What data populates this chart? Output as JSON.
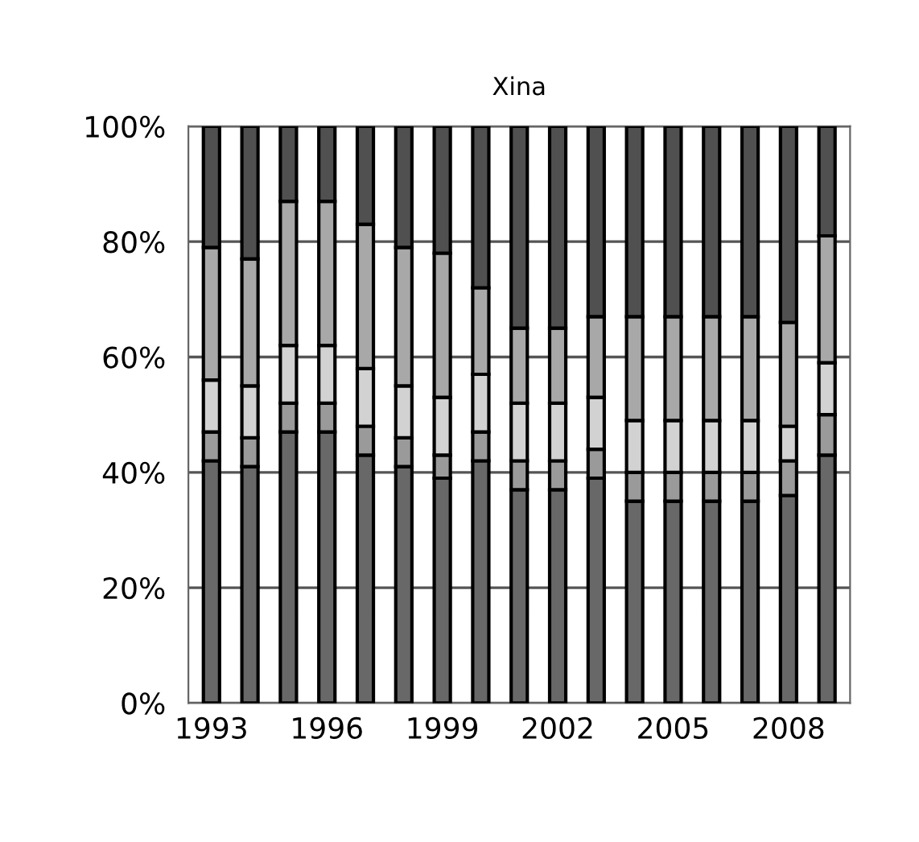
{
  "chart_data": {
    "type": "bar",
    "title": "Xina",
    "stacked": true,
    "categories": [
      "1993",
      null,
      null,
      "1996",
      null,
      null,
      "1999",
      null,
      null,
      "2002",
      null,
      null,
      "2005",
      null,
      null,
      "2008",
      null
    ],
    "series": [
      {
        "color": "#686868",
        "values": [
          42,
          41,
          47,
          47,
          43,
          41,
          39,
          42,
          37,
          37,
          39,
          35,
          35,
          35,
          35,
          36,
          43
        ]
      },
      {
        "color": "#9a9a9a",
        "values": [
          5,
          5,
          5,
          5,
          5,
          5,
          4,
          5,
          5,
          5,
          5,
          5,
          5,
          5,
          5,
          6,
          7
        ]
      },
      {
        "color": "#d2d2d2",
        "values": [
          9,
          9,
          10,
          10,
          10,
          9,
          10,
          10,
          10,
          10,
          9,
          9,
          9,
          9,
          9,
          6,
          9
        ]
      },
      {
        "color": "#a8a8a8",
        "values": [
          23,
          22,
          25,
          25,
          25,
          24,
          25,
          15,
          13,
          13,
          14,
          18,
          18,
          18,
          18,
          18,
          22
        ]
      },
      {
        "color": "#505050",
        "values": [
          21,
          23,
          13,
          13,
          17,
          21,
          22,
          28,
          35,
          35,
          33,
          33,
          33,
          33,
          33,
          34,
          19
        ]
      }
    ],
    "ylim": [
      0,
      100
    ],
    "yticks": [
      {
        "value": 0,
        "label": "0%"
      },
      {
        "value": 20,
        "label": "20%"
      },
      {
        "value": 40,
        "label": "40%"
      },
      {
        "value": 60,
        "label": "60%"
      },
      {
        "value": 80,
        "label": "80%"
      },
      {
        "value": 100,
        "label": "100%"
      }
    ],
    "grid": "y"
  }
}
